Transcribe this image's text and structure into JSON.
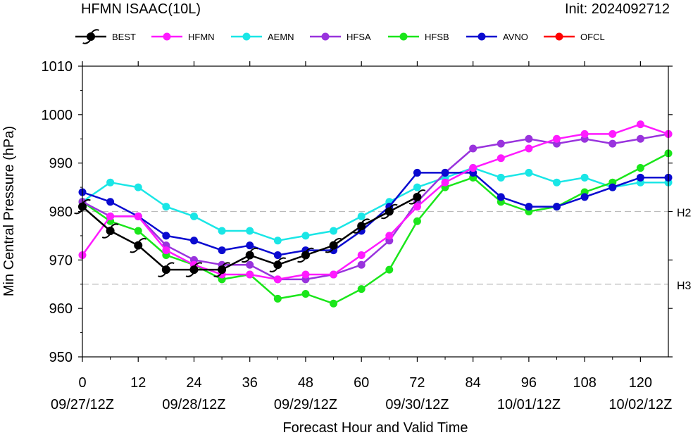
{
  "header": {
    "title": "HFMN ISAAC(10L)",
    "init": "Init: 2024092712"
  },
  "colors": {
    "BEST": "#000000",
    "HFMN": "#ff1aff",
    "AEMN": "#1ae6e6",
    "HFSA": "#9933dd",
    "HFSB": "#1ae61a",
    "AVNO": "#0a0ad0",
    "OFCL": "#ff0000",
    "axis": "#000000",
    "ref_line": "#bbbbbb"
  },
  "chart_data": {
    "type": "line",
    "xlabel": "Forecast Hour and Valid Time",
    "ylabel": "Min Central Pressure (hPa)",
    "xlim": [
      0,
      126
    ],
    "ylim": [
      950,
      1010
    ],
    "xticks": [
      0,
      12,
      24,
      36,
      48,
      60,
      72,
      84,
      96,
      108,
      120
    ],
    "xtick_dates": [
      {
        "x": 0,
        "label": "09/27/12Z"
      },
      {
        "x": 24,
        "label": "09/28/12Z"
      },
      {
        "x": 48,
        "label": "09/29/12Z"
      },
      {
        "x": 72,
        "label": "09/30/12Z"
      },
      {
        "x": 96,
        "label": "10/01/12Z"
      },
      {
        "x": 120,
        "label": "10/02/12Z"
      }
    ],
    "yticks": [
      950,
      960,
      970,
      980,
      990,
      1000,
      1010
    ],
    "grid": false,
    "legend": "top",
    "reference_lines": [
      {
        "y": 980,
        "label": "H2"
      },
      {
        "y": 965,
        "label": "H3"
      }
    ],
    "series": [
      {
        "name": "BEST",
        "marker": "hurricane-symbol",
        "x": [
          0,
          6,
          12,
          18,
          24,
          30,
          36,
          42,
          48,
          54,
          60,
          66,
          72
        ],
        "y": [
          981,
          976,
          973,
          968,
          968,
          968,
          971,
          969,
          971,
          973,
          977,
          980,
          983
        ]
      },
      {
        "name": "HFMN",
        "marker": "circle",
        "x": [
          0,
          6,
          12,
          18,
          24,
          30,
          36,
          42,
          48,
          54,
          60,
          66,
          72,
          78,
          84,
          90,
          96,
          102,
          108,
          114,
          120,
          126
        ],
        "y": [
          971,
          979,
          979,
          972,
          969,
          967,
          967,
          966,
          967,
          967,
          971,
          975,
          981,
          986,
          989,
          991,
          993,
          995,
          996,
          996,
          998,
          996
        ]
      },
      {
        "name": "AEMN",
        "marker": "circle",
        "x": [
          0,
          6,
          12,
          18,
          24,
          30,
          36,
          42,
          48,
          54,
          60,
          66,
          72,
          78,
          84,
          90,
          96,
          102,
          108,
          114,
          120,
          126
        ],
        "y": [
          982,
          986,
          985,
          981,
          979,
          976,
          976,
          974,
          975,
          976,
          979,
          982,
          985,
          987,
          989,
          987,
          988,
          986,
          987,
          985,
          986,
          986
        ]
      },
      {
        "name": "HFSA",
        "marker": "circle",
        "x": [
          0,
          6,
          12,
          18,
          24,
          30,
          36,
          42,
          48,
          54,
          60,
          66,
          72,
          78,
          84,
          90,
          96,
          102,
          108,
          114,
          120,
          126
        ],
        "y": [
          982,
          979,
          979,
          973,
          970,
          969,
          969,
          966,
          966,
          967,
          969,
          974,
          982,
          988,
          993,
          994,
          995,
          994,
          995,
          994,
          995,
          996
        ]
      },
      {
        "name": "HFSB",
        "marker": "circle",
        "x": [
          0,
          6,
          12,
          18,
          24,
          30,
          36,
          42,
          48,
          54,
          60,
          66,
          72,
          78,
          84,
          90,
          96,
          102,
          108,
          114,
          120,
          126
        ],
        "y": [
          982,
          978,
          976,
          971,
          969,
          966,
          967,
          962,
          963,
          961,
          964,
          968,
          978,
          985,
          987,
          982,
          980,
          981,
          984,
          986,
          989,
          992
        ]
      },
      {
        "name": "AVNO",
        "marker": "circle",
        "x": [
          0,
          6,
          12,
          18,
          24,
          30,
          36,
          42,
          48,
          54,
          60,
          66,
          72,
          78,
          84,
          90,
          96,
          102,
          108,
          114,
          120,
          126
        ],
        "y": [
          984,
          982,
          979,
          975,
          974,
          972,
          973,
          971,
          972,
          972,
          976,
          981,
          988,
          988,
          988,
          983,
          981,
          981,
          983,
          985,
          987,
          987
        ]
      },
      {
        "name": "OFCL",
        "marker": "circle",
        "x": [],
        "y": []
      }
    ]
  }
}
